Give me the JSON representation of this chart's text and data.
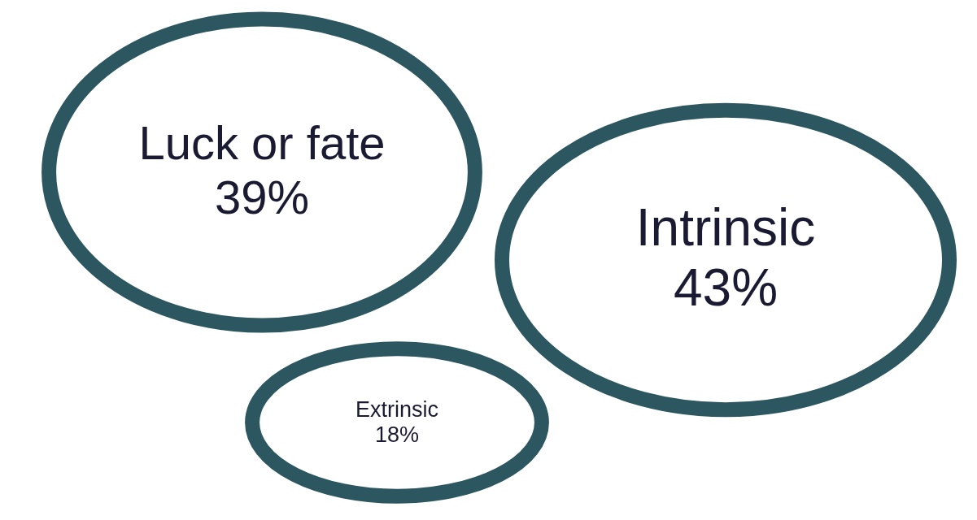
{
  "chart_data": {
    "type": "other",
    "categories": [
      "Luck or fate",
      "Intrinsic",
      "Extrinsic"
    ],
    "values": [
      39,
      43,
      18
    ],
    "value_labels": [
      "39%",
      "43%",
      "18%"
    ],
    "color": "#2c5660"
  }
}
